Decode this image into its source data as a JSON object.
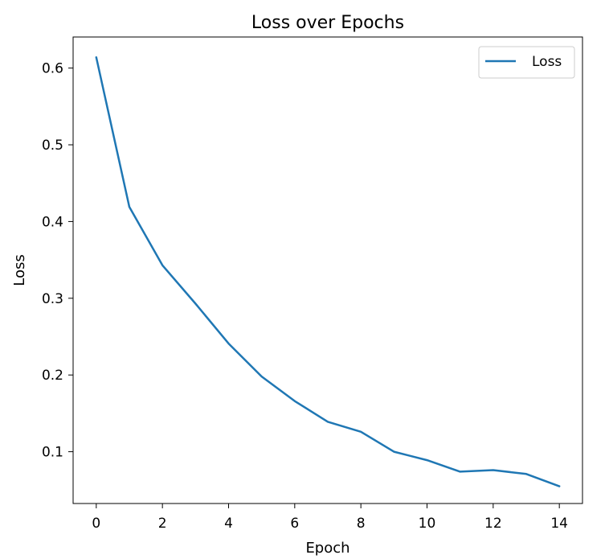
{
  "chart_data": {
    "type": "line",
    "title": "Loss over Epochs",
    "xlabel": "Epoch",
    "ylabel": "Loss",
    "xlim": [
      -0.7,
      14.7
    ],
    "ylim": [
      0.0325,
      0.6405
    ],
    "xticks": [
      0,
      2,
      4,
      6,
      8,
      10,
      12,
      14
    ],
    "yticks": [
      0.1,
      0.2,
      0.3,
      0.4,
      0.5,
      0.6
    ],
    "grid": false,
    "legend_position": "upper right",
    "series": [
      {
        "name": "Loss",
        "color": "#1f77b4",
        "x": [
          0,
          1,
          2,
          3,
          4,
          5,
          6,
          7,
          8,
          9,
          10,
          11,
          12,
          13,
          14
        ],
        "y": [
          0.614,
          0.419,
          0.343,
          0.293,
          0.241,
          0.198,
          0.166,
          0.139,
          0.126,
          0.1,
          0.089,
          0.074,
          0.076,
          0.071,
          0.055
        ]
      }
    ]
  }
}
